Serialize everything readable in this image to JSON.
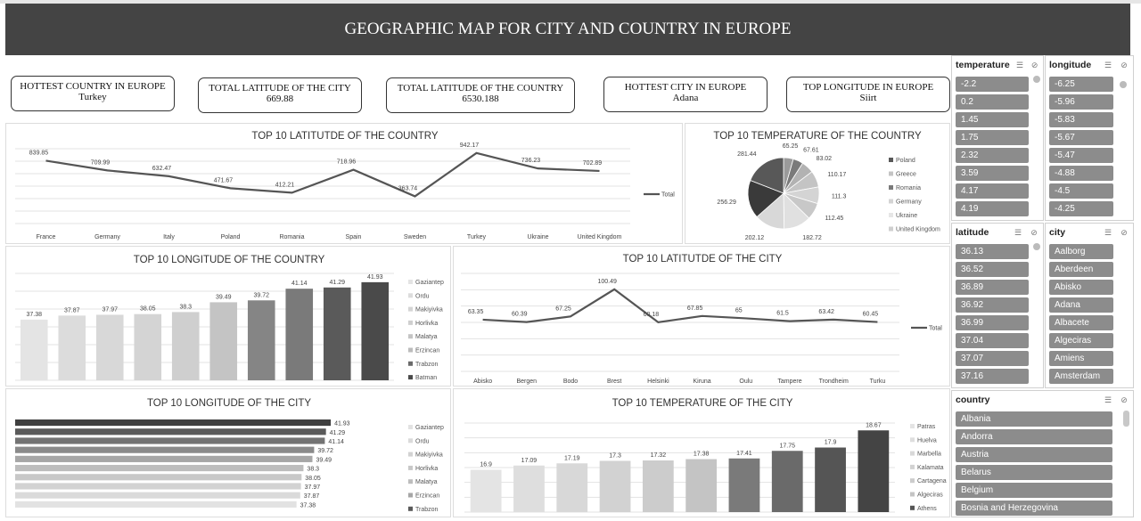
{
  "title": "GEOGRAPHIC MAP FOR CITY AND COUNTRY IN EUROPE",
  "kpis": [
    {
      "label": "HOTTEST COUNTRY IN EUROPE",
      "value": "Turkey"
    },
    {
      "label": "TOTAL LATITUDE OF THE CITY",
      "value": "669.88"
    },
    {
      "label": "TOTAL LATITUDE OF THE COUNTRY",
      "value": "6530.188"
    },
    {
      "label": "HOTTEST CITY IN EUROPE",
      "value": "Adana"
    },
    {
      "label": "TOP LONGITUDE IN EUROPE",
      "value": "Siirt"
    }
  ],
  "slicers": {
    "temperature": {
      "title": "temperature",
      "items": [
        "-2.2",
        "0.2",
        "1.45",
        "1.75",
        "2.32",
        "3.59",
        "4.17",
        "4.19"
      ]
    },
    "longitude": {
      "title": "longitude",
      "items": [
        "-6.25",
        "-5.96",
        "-5.83",
        "-5.67",
        "-5.47",
        "-4.88",
        "-4.5",
        "-4.25"
      ]
    },
    "latitude": {
      "title": "latitude",
      "items": [
        "36.13",
        "36.52",
        "36.89",
        "36.92",
        "36.99",
        "37.04",
        "37.07",
        "37.16"
      ]
    },
    "city": {
      "title": "city",
      "items": [
        "Aalborg",
        "Aberdeen",
        "Abisko",
        "Adana",
        "Albacete",
        "Algeciras",
        "Amiens",
        "Amsterdam"
      ]
    },
    "country": {
      "title": "country",
      "items": [
        "Albania",
        "Andorra",
        "Austria",
        "Belarus",
        "Belgium",
        "Bosnia and Herzegovina"
      ]
    }
  },
  "chart_data": [
    {
      "id": "lat_country",
      "type": "line",
      "title": "TOP 10 LATITUTDE OF THE COUNTRY",
      "categories": [
        "France",
        "Germany",
        "Italy",
        "Poland",
        "Romania",
        "Spain",
        "Sweden",
        "Turkey",
        "Ukraine",
        "United Kingdom"
      ],
      "series": [
        {
          "name": "Total",
          "values": [
            839.85,
            709.99,
            632.47,
            471.67,
            412.21,
            718.96,
            363.74,
            942.17,
            736.23,
            702.89
          ]
        }
      ],
      "legend": "right",
      "ylim": [
        0,
        1000
      ],
      "color": "#555555"
    },
    {
      "id": "temp_country",
      "type": "pie",
      "title": "TOP 10 TEMPERATURE OF THE COUNTRY",
      "labels": [
        "65.25",
        "67.61",
        "83.02",
        "110.17",
        "111.3",
        "112.45",
        "182.72",
        "202.12",
        "256.29",
        "281.44"
      ],
      "values": [
        65.25,
        67.61,
        83.02,
        110.17,
        111.3,
        112.45,
        182.72,
        202.12,
        256.29,
        281.44
      ],
      "colors": [
        "#9a9a9a",
        "#7a7a7a",
        "#b2b2b2",
        "#c4c4c4",
        "#d4d4d4",
        "#c8c8c8",
        "#e0e0e0",
        "#d8d8d8",
        "#3a3a3a",
        "#585858"
      ],
      "legend": [
        "Poland",
        "Greece",
        "Romania",
        "Germany",
        "Ukraine",
        "United Kingdom"
      ],
      "legend_colors": [
        "#585858",
        "#c4c4c4",
        "#7a7a7a",
        "#d4d4d4",
        "#e6e6e6",
        "#cfcfcf"
      ]
    },
    {
      "id": "lon_country",
      "type": "bar",
      "title": "TOP 10 LONGITUDE OF THE COUNTRY",
      "values": [
        37.38,
        37.87,
        37.97,
        38.05,
        38.3,
        39.49,
        39.72,
        41.14,
        41.29,
        41.93
      ],
      "colors": [
        "#e4e4e4",
        "#dcdcdc",
        "#d8d8d8",
        "#d4d4d4",
        "#cfcfcf",
        "#c4c4c4",
        "#858585",
        "#7a7a7a",
        "#5a5a5a",
        "#4a4a4a"
      ],
      "legend": [
        "Gaziantep",
        "Ordu",
        "Makiyivka",
        "Horlivka",
        "Malatya",
        "Erzincan",
        "Trabzon",
        "Batman"
      ],
      "legend_colors": [
        "#e4e4e4",
        "#dcdcdc",
        "#d4d4d4",
        "#cfcfcf",
        "#c4c4c4",
        "#bcbcbc",
        "#6a6a6a",
        "#4a4a4a"
      ],
      "ylim": [
        30,
        43
      ]
    },
    {
      "id": "lat_city",
      "type": "line",
      "title": "TOP 10 LATITUTDE OF THE CITY",
      "categories": [
        "Abisko",
        "Bergen",
        "Bodo",
        "Brest",
        "Helsinki",
        "Kiruna",
        "Oulu",
        "Tampere",
        "Trondheim",
        "Turku"
      ],
      "series": [
        {
          "name": "Total",
          "values": [
            63.35,
            60.39,
            67.25,
            100.49,
            60.18,
            67.85,
            65,
            61.5,
            63.42,
            60.45
          ]
        }
      ],
      "legend": "right",
      "ylim": [
        0,
        120
      ],
      "color": "#555555"
    },
    {
      "id": "lon_city",
      "type": "bar",
      "orientation": "horizontal",
      "title": "TOP 10 LONGITUDE OF THE CITY",
      "values": [
        41.93,
        41.29,
        41.14,
        39.72,
        39.49,
        38.3,
        38.05,
        37.97,
        37.87,
        37.38
      ],
      "colors": [
        "#3f3f3f",
        "#5a5a5a",
        "#737373",
        "#8a8a8a",
        "#a6a6a6",
        "#bdbdbd",
        "#c8c8c8",
        "#d2d2d2",
        "#dadada",
        "#e2e2e2"
      ],
      "legend": [
        "Gaziantep",
        "Ordu",
        "Makiyivka",
        "Horlivka",
        "Malatya",
        "Erzincan",
        "Trabzon"
      ],
      "legend_colors": [
        "#e2e2e2",
        "#dadada",
        "#d2d2d2",
        "#c8c8c8",
        "#bdbdbd",
        "#a6a6a6",
        "#5a5a5a"
      ],
      "xlim": [
        0,
        45
      ]
    },
    {
      "id": "temp_city",
      "type": "bar",
      "title": "TOP 10 TEMPERATURE OF THE CITY",
      "values": [
        16.9,
        17.09,
        17.19,
        17.3,
        17.32,
        17.38,
        17.41,
        17.75,
        17.9,
        18.67
      ],
      "colors": [
        "#e4e4e4",
        "#dedede",
        "#d8d8d8",
        "#d2d2d2",
        "#cccccc",
        "#c4c4c4",
        "#7a7a7a",
        "#6a6a6a",
        "#555555",
        "#444444"
      ],
      "legend": [
        "Patras",
        "Huelva",
        "Marbella",
        "Kalamata",
        "Cartagena",
        "Algeciras",
        "Athens"
      ],
      "legend_colors": [
        "#e4e4e4",
        "#dedede",
        "#d8d8d8",
        "#d2d2d2",
        "#cccccc",
        "#c4c4c4",
        "#555555"
      ],
      "ylim": [
        15,
        19
      ]
    }
  ]
}
